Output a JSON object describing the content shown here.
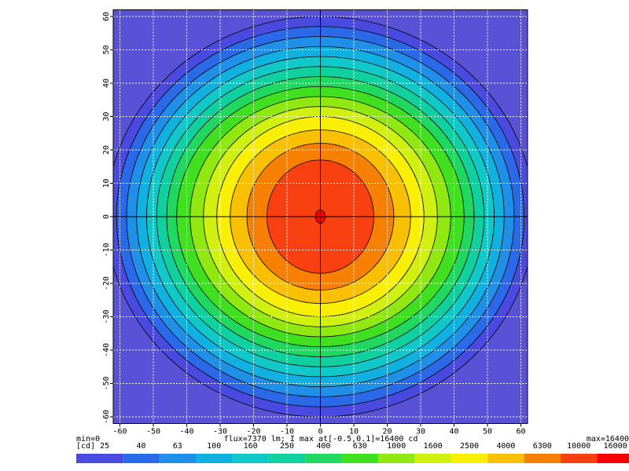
{
  "chart_data": {
    "type": "contour",
    "xlim": [
      -62,
      62
    ],
    "ylim": [
      -62,
      62
    ],
    "xticks": [
      -60,
      -50,
      -40,
      -30,
      -20,
      -10,
      0,
      10,
      20,
      30,
      40,
      50,
      60
    ],
    "yticks": [
      -60,
      -50,
      -40,
      -30,
      -20,
      -10,
      0,
      10,
      20,
      30,
      40,
      50,
      60
    ],
    "grid": true,
    "background_color": "#5a52d6",
    "contours": [
      {
        "level": 25,
        "rx": 64,
        "ry": 60
      },
      {
        "level": 40,
        "rx": 61,
        "ry": 57
      },
      {
        "level": 63,
        "rx": 58,
        "ry": 54
      },
      {
        "level": 100,
        "rx": 55,
        "ry": 51
      },
      {
        "level": 160,
        "rx": 52,
        "ry": 48
      },
      {
        "level": 250,
        "rx": 49,
        "ry": 45
      },
      {
        "level": 400,
        "rx": 46,
        "ry": 42
      },
      {
        "level": 630,
        "rx": 43,
        "ry": 39
      },
      {
        "level": 1000,
        "rx": 39,
        "ry": 36
      },
      {
        "level": 1600,
        "rx": 35,
        "ry": 33
      },
      {
        "level": 2500,
        "rx": 31,
        "ry": 30
      },
      {
        "level": 4000,
        "rx": 27,
        "ry": 26
      },
      {
        "level": 6300,
        "rx": 22,
        "ry": 22
      },
      {
        "level": 10000,
        "rx": 16,
        "ry": 17
      },
      {
        "level": 16000,
        "rx": 1.5,
        "ry": 2
      }
    ],
    "colorbar": {
      "unit": "[cd]",
      "ticks": [
        25,
        40,
        63,
        100,
        160,
        250,
        400,
        630,
        1000,
        1600,
        2500,
        4000,
        6300,
        10000,
        16000
      ],
      "colors": [
        "#4a4ae0",
        "#2a6ae8",
        "#1f8fe8",
        "#10b0e0",
        "#10c8c8",
        "#10d0a0",
        "#20d860",
        "#40e020",
        "#90e810",
        "#d0f010",
        "#f8f000",
        "#f8c000",
        "#f88000",
        "#f84010",
        "#f80000"
      ]
    },
    "min_label": "min=0",
    "max_label": "max=16400",
    "annotation": "flux=7370 lm; I max at[-0.5,0.1]=16400 cd"
  }
}
